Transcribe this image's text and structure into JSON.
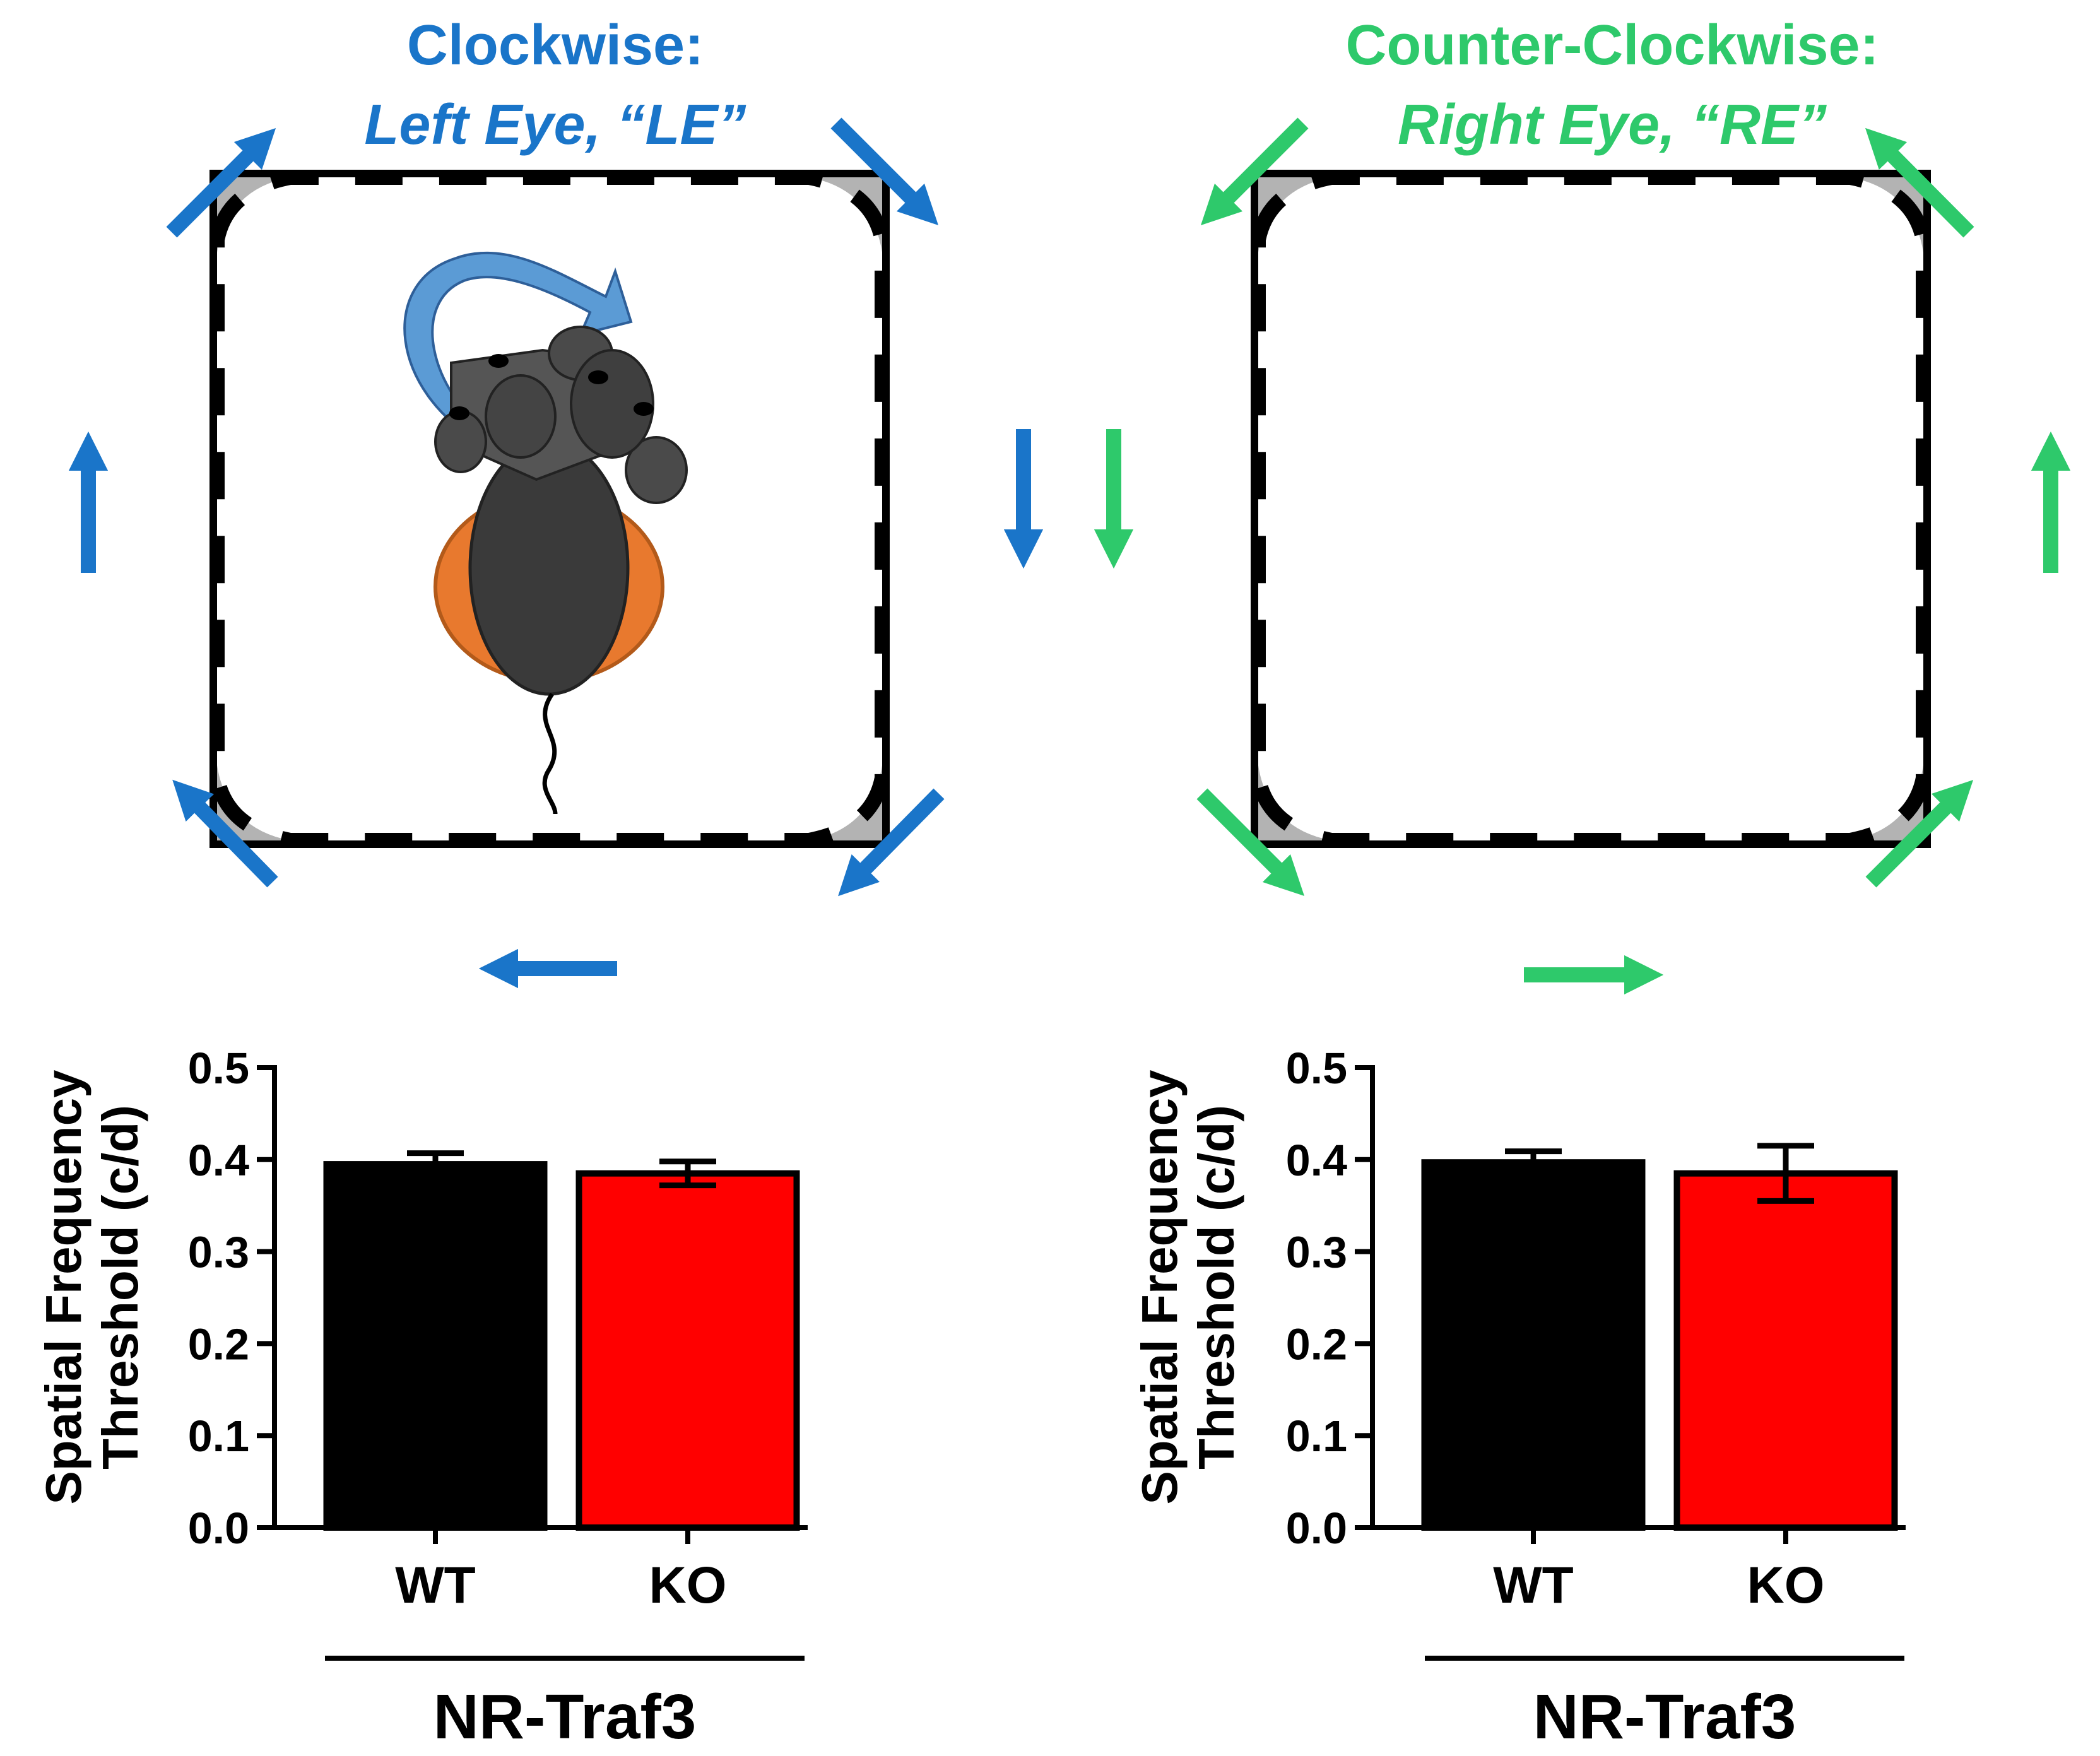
{
  "colors": {
    "clockwise": "#1a75c9",
    "counter_clockwise": "#2ec96b",
    "wt_bar": "#000000",
    "ko_bar": "#ff0000",
    "mouse_body": "#3a3a3a",
    "mouse_head": "#555555",
    "platform": "#e8792e",
    "clockwise_arrow_light": "#5b9bd5",
    "counter_arrow_dark": "#1e8f43"
  },
  "panels": {
    "left": {
      "title": "Clockwise:",
      "subtitle": "Left Eye, “LE”"
    },
    "right": {
      "title": "Counter-Clockwise:",
      "subtitle": "Right Eye, “RE”"
    }
  },
  "chart_data": [
    {
      "type": "bar",
      "categories": [
        "WT",
        "KO"
      ],
      "values": [
        0.395,
        0.385
      ],
      "errors": [
        0.012,
        0.013
      ],
      "bar_colors": [
        "#000000",
        "#ff0000"
      ],
      "ylabel_line1": "Spatial Frequency",
      "ylabel_line2": "Threshold (c/d)",
      "ylim": [
        0,
        0.5
      ],
      "yticks": [
        "0.0",
        "0.1",
        "0.2",
        "0.3",
        "0.4",
        "0.5"
      ],
      "group_label": "NR-Traf3",
      "grid": false
    },
    {
      "type": "bar",
      "categories": [
        "WT",
        "KO"
      ],
      "values": [
        0.397,
        0.385
      ],
      "errors": [
        0.012,
        0.03
      ],
      "bar_colors": [
        "#000000",
        "#ff0000"
      ],
      "ylabel_line1": "Spatial Frequency",
      "ylabel_line2": "Threshold (c/d)",
      "ylim": [
        0,
        0.5
      ],
      "yticks": [
        "0.0",
        "0.1",
        "0.2",
        "0.3",
        "0.4",
        "0.5"
      ],
      "group_label": "NR-Traf3",
      "grid": false
    }
  ]
}
